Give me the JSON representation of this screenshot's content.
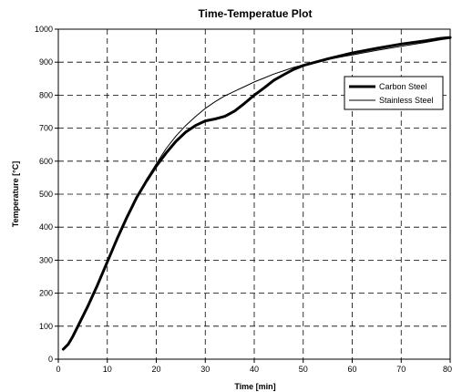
{
  "chart_data": {
    "type": "line",
    "title": "Time-Temperatue Plot",
    "xlabel": "Time [min]",
    "ylabel": "Temperature [°C]",
    "xlim": [
      0,
      80
    ],
    "ylim": [
      0,
      1000
    ],
    "x_ticks": [
      "0",
      "10",
      "20",
      "30",
      "40",
      "50",
      "60",
      "70",
      "80"
    ],
    "y_ticks": [
      "0",
      "100",
      "200",
      "300",
      "400",
      "500",
      "600",
      "700",
      "800",
      "900",
      "1000"
    ],
    "grid": true,
    "legend_position": "right",
    "series": [
      {
        "name": "Carbon Steel",
        "color": "#000000",
        "style": "thick",
        "x": [
          1,
          2,
          3,
          4,
          6,
          8,
          10,
          12,
          14,
          16,
          18,
          20,
          22,
          24,
          26,
          28,
          30,
          32,
          34,
          36,
          38,
          40,
          42,
          44,
          46,
          48,
          50,
          55,
          60,
          65,
          70,
          75,
          78,
          80
        ],
        "y": [
          30,
          45,
          70,
          100,
          160,
          225,
          295,
          365,
          430,
          490,
          540,
          585,
          625,
          660,
          688,
          708,
          722,
          728,
          736,
          752,
          775,
          800,
          822,
          845,
          862,
          878,
          890,
          910,
          928,
          942,
          955,
          965,
          972,
          975
        ]
      },
      {
        "name": "Stainless Steel",
        "color": "#000000",
        "style": "thin",
        "x": [
          1,
          2,
          3,
          4,
          6,
          8,
          10,
          12,
          14,
          16,
          18,
          20,
          22,
          24,
          26,
          28,
          30,
          32,
          34,
          36,
          38,
          40,
          42,
          44,
          46,
          48,
          50,
          55,
          60,
          65,
          70,
          75,
          78,
          80
        ],
        "y": [
          30,
          45,
          70,
          100,
          160,
          225,
          295,
          365,
          430,
          490,
          545,
          592,
          638,
          676,
          708,
          735,
          760,
          780,
          798,
          812,
          826,
          840,
          852,
          864,
          874,
          884,
          892,
          908,
          922,
          936,
          948,
          960,
          968,
          972
        ]
      }
    ]
  }
}
